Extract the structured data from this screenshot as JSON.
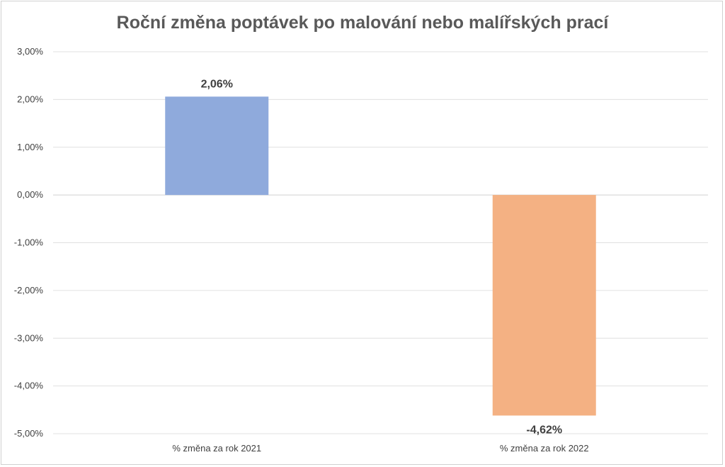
{
  "chart_data": {
    "type": "bar",
    "title": "Roční změna poptávek po malování nebo malířských prací",
    "categories": [
      "% změna za rok 2021",
      "% změna za rok 2022"
    ],
    "values": [
      2.06,
      -4.62
    ],
    "data_labels": [
      "2,06%",
      "-4,62%"
    ],
    "colors": [
      "#8faadc",
      "#f4b183"
    ],
    "ylim": [
      -5,
      3
    ],
    "yticks": [
      3,
      2,
      1,
      0,
      -1,
      -2,
      -3,
      -4,
      -5
    ],
    "ytick_labels": [
      "3,00%",
      "2,00%",
      "1,00%",
      "0,00%",
      "-1,00%",
      "-2,00%",
      "-3,00%",
      "-4,00%",
      "-5,00%"
    ],
    "grid": true,
    "legend": "none"
  }
}
